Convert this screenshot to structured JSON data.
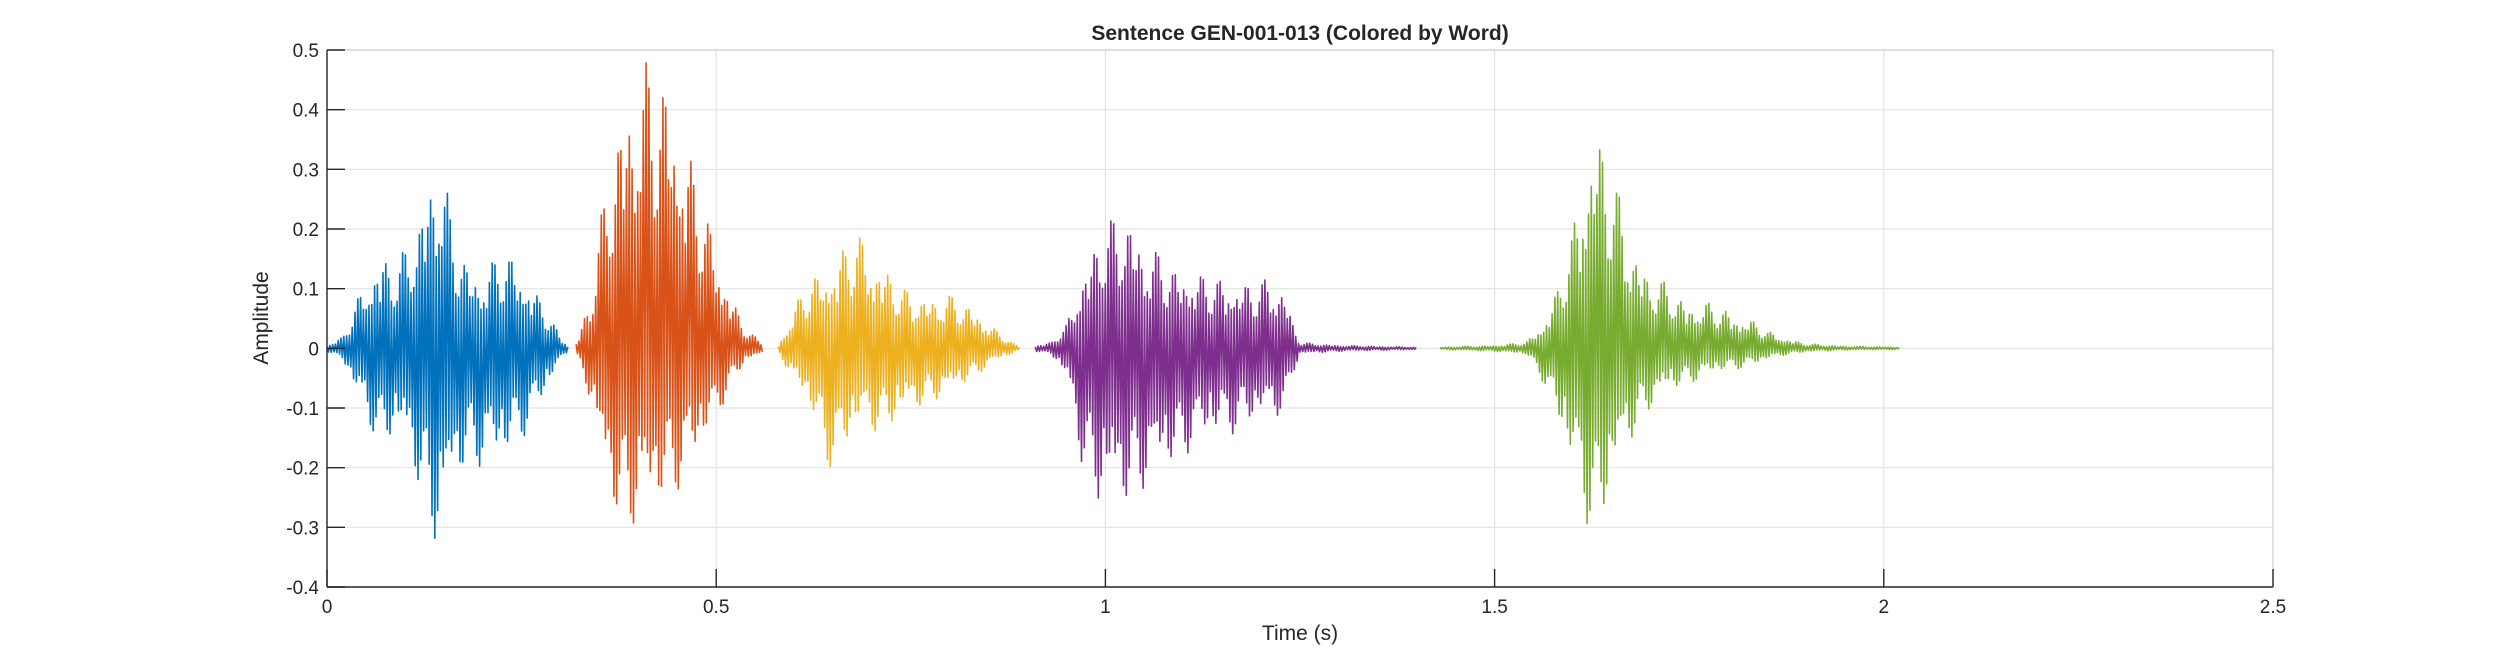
{
  "chart_data": {
    "type": "line",
    "title": "Sentence GEN-001-013 (Colored by Word)",
    "xlabel": "Time (s)",
    "ylabel": "Amplitude",
    "xlim": [
      0,
      2.5
    ],
    "ylim": [
      -0.4,
      0.5
    ],
    "x_ticks": [
      0,
      0.5,
      1,
      1.5,
      2,
      2.5
    ],
    "x_tick_labels": [
      "0",
      "0.5",
      "1",
      "1.5",
      "2",
      "2.5"
    ],
    "y_ticks": [
      0.5,
      0.4,
      0.3,
      0.2,
      0.1,
      0,
      -0.1,
      -0.2,
      -0.3,
      -0.4
    ],
    "y_tick_labels": [
      "0.5",
      "0.4",
      "0.3",
      "0.2",
      "0.1",
      "0",
      "-0.1",
      "-0.2",
      "-0.3",
      "-0.4"
    ],
    "grid": true,
    "legend": false,
    "series": [
      {
        "color": "#0072BD",
        "t_start": 0.0,
        "t_end": 0.31,
        "envelope": [
          [
            0.0,
            0.005
          ],
          [
            0.02,
            0.02
          ],
          [
            0.05,
            0.12
          ],
          [
            0.07,
            0.17
          ],
          [
            0.09,
            0.14
          ],
          [
            0.11,
            0.2
          ],
          [
            0.13,
            0.3
          ],
          [
            0.145,
            0.34
          ],
          [
            0.16,
            0.22
          ],
          [
            0.18,
            0.15
          ],
          [
            0.2,
            0.13
          ],
          [
            0.22,
            0.16
          ],
          [
            0.24,
            0.16
          ],
          [
            0.26,
            0.12
          ],
          [
            0.28,
            0.07
          ],
          [
            0.3,
            0.02
          ],
          [
            0.31,
            0.005
          ]
        ],
        "neg_envelope": [
          [
            0.0,
            -0.005
          ],
          [
            0.02,
            -0.02
          ],
          [
            0.05,
            -0.12
          ],
          [
            0.07,
            -0.17
          ],
          [
            0.09,
            -0.15
          ],
          [
            0.11,
            -0.2
          ],
          [
            0.13,
            -0.3
          ],
          [
            0.145,
            -0.36
          ],
          [
            0.16,
            -0.25
          ],
          [
            0.18,
            -0.2
          ],
          [
            0.2,
            -0.2
          ],
          [
            0.22,
            -0.2
          ],
          [
            0.24,
            -0.18
          ],
          [
            0.26,
            -0.13
          ],
          [
            0.28,
            -0.08
          ],
          [
            0.3,
            -0.02
          ],
          [
            0.31,
            -0.005
          ]
        ]
      },
      {
        "color": "#D95319",
        "t_start": 0.32,
        "t_end": 0.56,
        "envelope": [
          [
            0.32,
            0.01
          ],
          [
            0.34,
            0.1
          ],
          [
            0.36,
            0.3
          ],
          [
            0.38,
            0.44
          ],
          [
            0.4,
            0.49
          ],
          [
            0.42,
            0.48
          ],
          [
            0.44,
            0.47
          ],
          [
            0.46,
            0.37
          ],
          [
            0.48,
            0.26
          ],
          [
            0.5,
            0.18
          ],
          [
            0.52,
            0.09
          ],
          [
            0.54,
            0.03
          ],
          [
            0.56,
            0.01
          ]
        ],
        "neg_envelope": [
          [
            0.32,
            -0.01
          ],
          [
            0.34,
            -0.1
          ],
          [
            0.36,
            -0.25
          ],
          [
            0.38,
            -0.31
          ],
          [
            0.4,
            -0.3
          ],
          [
            0.42,
            -0.28
          ],
          [
            0.44,
            -0.26
          ],
          [
            0.46,
            -0.22
          ],
          [
            0.48,
            -0.18
          ],
          [
            0.5,
            -0.12
          ],
          [
            0.52,
            -0.06
          ],
          [
            0.54,
            -0.02
          ],
          [
            0.56,
            -0.01
          ]
        ]
      },
      {
        "color": "#EDB120",
        "t_start": 0.58,
        "t_end": 0.89,
        "envelope": [
          [
            0.58,
            0.005
          ],
          [
            0.6,
            0.07
          ],
          [
            0.62,
            0.12
          ],
          [
            0.64,
            0.14
          ],
          [
            0.66,
            0.17
          ],
          [
            0.68,
            0.2
          ],
          [
            0.7,
            0.17
          ],
          [
            0.72,
            0.14
          ],
          [
            0.74,
            0.1
          ],
          [
            0.76,
            0.095
          ],
          [
            0.78,
            0.09
          ],
          [
            0.8,
            0.09
          ],
          [
            0.82,
            0.08
          ],
          [
            0.84,
            0.06
          ],
          [
            0.86,
            0.03
          ],
          [
            0.88,
            0.01
          ],
          [
            0.89,
            0.003
          ]
        ],
        "neg_envelope": [
          [
            0.58,
            -0.005
          ],
          [
            0.6,
            -0.06
          ],
          [
            0.62,
            -0.1
          ],
          [
            0.64,
            -0.2
          ],
          [
            0.66,
            -0.2
          ],
          [
            0.68,
            -0.14
          ],
          [
            0.7,
            -0.14
          ],
          [
            0.72,
            -0.14
          ],
          [
            0.74,
            -0.12
          ],
          [
            0.76,
            -0.1
          ],
          [
            0.78,
            -0.09
          ],
          [
            0.8,
            -0.08
          ],
          [
            0.82,
            -0.06
          ],
          [
            0.84,
            -0.04
          ],
          [
            0.86,
            -0.02
          ],
          [
            0.88,
            -0.01
          ],
          [
            0.89,
            -0.003
          ]
        ]
      },
      {
        "color": "#7E2F8E",
        "t_start": 0.91,
        "t_end": 1.4,
        "envelope": [
          [
            0.91,
            0.005
          ],
          [
            0.93,
            0.01
          ],
          [
            0.95,
            0.04
          ],
          [
            0.97,
            0.13
          ],
          [
            0.99,
            0.2
          ],
          [
            1.01,
            0.22
          ],
          [
            1.03,
            0.24
          ],
          [
            1.05,
            0.18
          ],
          [
            1.07,
            0.16
          ],
          [
            1.09,
            0.14
          ],
          [
            1.11,
            0.14
          ],
          [
            1.13,
            0.12
          ],
          [
            1.15,
            0.12
          ],
          [
            1.17,
            0.12
          ],
          [
            1.19,
            0.11
          ],
          [
            1.21,
            0.12
          ],
          [
            1.23,
            0.11
          ],
          [
            1.24,
            0.05
          ],
          [
            1.25,
            0.01
          ],
          [
            1.3,
            0.005
          ],
          [
            1.4,
            0.002
          ]
        ],
        "neg_envelope": [
          [
            0.91,
            -0.005
          ],
          [
            0.93,
            -0.01
          ],
          [
            0.95,
            -0.05
          ],
          [
            0.97,
            -0.2
          ],
          [
            0.99,
            -0.27
          ],
          [
            1.01,
            -0.28
          ],
          [
            1.03,
            -0.26
          ],
          [
            1.05,
            -0.24
          ],
          [
            1.07,
            -0.22
          ],
          [
            1.09,
            -0.2
          ],
          [
            1.11,
            -0.17
          ],
          [
            1.13,
            -0.16
          ],
          [
            1.15,
            -0.15
          ],
          [
            1.17,
            -0.14
          ],
          [
            1.19,
            -0.13
          ],
          [
            1.21,
            -0.12
          ],
          [
            1.23,
            -0.11
          ],
          [
            1.24,
            -0.05
          ],
          [
            1.25,
            -0.01
          ],
          [
            1.3,
            -0.005
          ],
          [
            1.4,
            -0.002
          ]
        ]
      },
      {
        "color": "#77AC30",
        "t_start": 1.43,
        "t_end": 2.02,
        "envelope": [
          [
            1.43,
            0.002
          ],
          [
            1.5,
            0.005
          ],
          [
            1.54,
            0.01
          ],
          [
            1.56,
            0.04
          ],
          [
            1.58,
            0.1
          ],
          [
            1.6,
            0.2
          ],
          [
            1.62,
            0.36
          ],
          [
            1.63,
            0.41
          ],
          [
            1.65,
            0.31
          ],
          [
            1.67,
            0.21
          ],
          [
            1.69,
            0.15
          ],
          [
            1.71,
            0.12
          ],
          [
            1.73,
            0.1
          ],
          [
            1.75,
            0.08
          ],
          [
            1.77,
            0.08
          ],
          [
            1.79,
            0.07
          ],
          [
            1.81,
            0.06
          ],
          [
            1.83,
            0.05
          ],
          [
            1.85,
            0.03
          ],
          [
            1.87,
            0.02
          ],
          [
            1.9,
            0.008
          ],
          [
            1.95,
            0.004
          ],
          [
            2.02,
            0.002
          ]
        ],
        "neg_envelope": [
          [
            1.43,
            -0.002
          ],
          [
            1.5,
            -0.005
          ],
          [
            1.54,
            -0.01
          ],
          [
            1.56,
            -0.05
          ],
          [
            1.58,
            -0.12
          ],
          [
            1.6,
            -0.22
          ],
          [
            1.62,
            -0.3
          ],
          [
            1.63,
            -0.34
          ],
          [
            1.65,
            -0.25
          ],
          [
            1.67,
            -0.17
          ],
          [
            1.69,
            -0.12
          ],
          [
            1.71,
            -0.09
          ],
          [
            1.73,
            -0.07
          ],
          [
            1.75,
            -0.06
          ],
          [
            1.77,
            -0.05
          ],
          [
            1.79,
            -0.04
          ],
          [
            1.81,
            -0.035
          ],
          [
            1.83,
            -0.03
          ],
          [
            1.85,
            -0.02
          ],
          [
            1.87,
            -0.012
          ],
          [
            1.9,
            -0.006
          ],
          [
            1.95,
            -0.003
          ],
          [
            2.02,
            -0.002
          ]
        ]
      }
    ]
  }
}
